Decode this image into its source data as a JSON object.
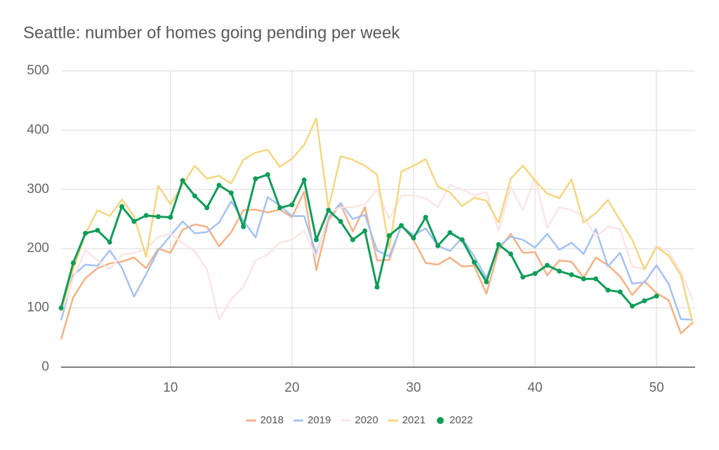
{
  "chart_data": {
    "type": "line",
    "title": "Seattle: number of homes going pending per week",
    "x": [
      1,
      2,
      3,
      4,
      5,
      6,
      7,
      8,
      9,
      10,
      11,
      12,
      13,
      14,
      15,
      16,
      17,
      18,
      19,
      20,
      21,
      22,
      23,
      24,
      25,
      26,
      27,
      28,
      29,
      30,
      31,
      32,
      33,
      34,
      35,
      36,
      37,
      38,
      39,
      40,
      41,
      42,
      43,
      44,
      45,
      46,
      47,
      48,
      49,
      50,
      51,
      52,
      53
    ],
    "xlim": [
      1,
      53
    ],
    "xticks": [
      10,
      20,
      30,
      40,
      50
    ],
    "ylim": [
      0,
      500
    ],
    "yticks": [
      0,
      100,
      200,
      300,
      400,
      500
    ],
    "grid": true,
    "legend": "bottom",
    "series": [
      {
        "name": "2018",
        "color": "#f6b184",
        "values": [
          47,
          118,
          150,
          167,
          175,
          178,
          185,
          167,
          200,
          193,
          232,
          241,
          237,
          204,
          228,
          265,
          266,
          261,
          266,
          253,
          296,
          164,
          248,
          275,
          229,
          270,
          180,
          181,
          240,
          215,
          176,
          173,
          185,
          170,
          171,
          124,
          198,
          225,
          193,
          194,
          155,
          180,
          178,
          151,
          185,
          172,
          153,
          122,
          145,
          125,
          113,
          57,
          76
        ]
      },
      {
        "name": "2019",
        "color": "#a4c2f4",
        "values": [
          79,
          155,
          173,
          171,
          197,
          168,
          119,
          157,
          197,
          222,
          246,
          226,
          228,
          244,
          280,
          247,
          219,
          287,
          273,
          255,
          255,
          191,
          253,
          277,
          250,
          257,
          197,
          187,
          238,
          223,
          234,
          205,
          196,
          218,
          187,
          150,
          204,
          220,
          215,
          202,
          225,
          198,
          210,
          191,
          233,
          170,
          193,
          141,
          143,
          172,
          140,
          81,
          80
        ]
      },
      {
        "name": "2020",
        "color": "#fce5e5",
        "values": [
          90,
          150,
          197,
          180,
          165,
          190,
          193,
          200,
          220,
          225,
          210,
          195,
          165,
          80,
          115,
          135,
          180,
          190,
          210,
          215,
          230,
          185,
          260,
          270,
          270,
          275,
          300,
          250,
          290,
          290,
          285,
          270,
          308,
          300,
          290,
          295,
          230,
          305,
          265,
          320,
          235,
          270,
          265,
          255,
          220,
          237,
          233,
          170,
          165,
          205,
          195,
          160,
          113
        ]
      },
      {
        "name": "2021",
        "color": "#f7d67e",
        "values": [
          95,
          165,
          225,
          265,
          255,
          283,
          255,
          186,
          306,
          275,
          308,
          340,
          318,
          323,
          310,
          350,
          362,
          367,
          338,
          352,
          375,
          420,
          268,
          356,
          350,
          340,
          325,
          200,
          330,
          340,
          351,
          305,
          295,
          272,
          286,
          281,
          244,
          318,
          340,
          315,
          293,
          285,
          317,
          244,
          260,
          282,
          248,
          215,
          165,
          203,
          188,
          155,
          72
        ]
      },
      {
        "name": "2022",
        "color": "#0f9d58",
        "markers": true,
        "values": [
          100,
          176,
          226,
          231,
          211,
          271,
          246,
          256,
          254,
          253,
          315,
          289,
          269,
          307,
          294,
          237,
          318,
          325,
          269,
          274,
          316,
          215,
          265,
          246,
          215,
          230,
          135,
          222,
          239,
          218,
          253,
          205,
          227,
          215,
          177,
          144,
          207,
          191,
          152,
          158,
          172,
          162,
          156,
          149,
          149,
          130,
          127,
          103,
          112,
          120,
          null,
          null,
          null
        ]
      }
    ]
  }
}
